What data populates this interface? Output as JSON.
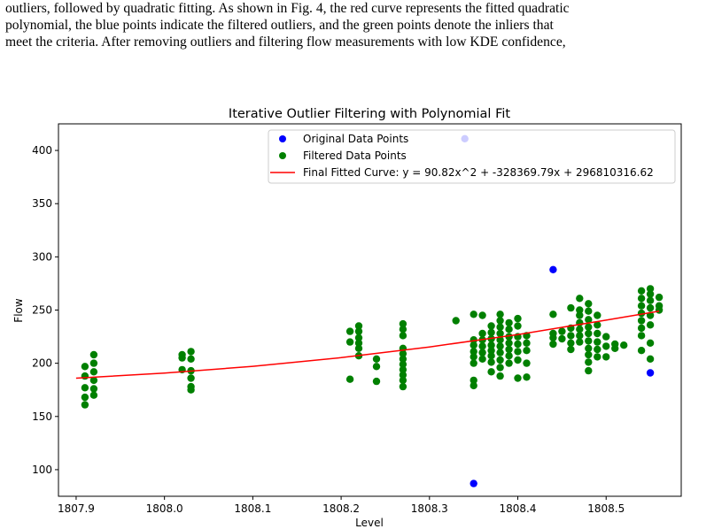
{
  "paragraph": {
    "lines": [
      "outliers, followed by quadratic fitting. As shown in Fig. 4, the red curve represents the fitted quadratic",
      "polynomial, the blue points indicate the filtered outliers, and the green points denote the inliers that",
      "meet the criteria. After removing outliers and filtering flow measurements with low KDE confidence,"
    ]
  },
  "chart_data": {
    "type": "scatter",
    "title": "Iterative Outlier Filtering with Polynomial Fit",
    "xlabel": "Level",
    "ylabel": "Flow",
    "xlim": [
      1807.88,
      1808.585
    ],
    "ylim": [
      75,
      425
    ],
    "xticks": [
      1807.9,
      1808.0,
      1808.1,
      1808.2,
      1808.3,
      1808.4,
      1808.5
    ],
    "xtick_labels": [
      "1807.9",
      "1808.0",
      "1808.1",
      "1808.2",
      "1808.3",
      "1808.4",
      "1808.5"
    ],
    "yticks": [
      100,
      150,
      200,
      250,
      300,
      350,
      400
    ],
    "ytick_labels": [
      "100",
      "150",
      "200",
      "250",
      "300",
      "350",
      "400"
    ],
    "grid": false,
    "legend_position": "top-right",
    "series": [
      {
        "name": "Original Data Points",
        "color": "#0000ff",
        "points": [
          [
            1808.34,
            411
          ],
          [
            1808.44,
            288
          ],
          [
            1808.35,
            87
          ],
          [
            1808.55,
            191
          ]
        ]
      },
      {
        "name": "Filtered Data Points",
        "color": "#008000",
        "points": [
          [
            1807.91,
            161
          ],
          [
            1807.91,
            168
          ],
          [
            1807.91,
            177
          ],
          [
            1807.91,
            188
          ],
          [
            1807.91,
            197
          ],
          [
            1807.92,
            170
          ],
          [
            1807.92,
            176
          ],
          [
            1807.92,
            184
          ],
          [
            1807.92,
            192
          ],
          [
            1807.92,
            200
          ],
          [
            1807.92,
            208
          ],
          [
            1808.02,
            194
          ],
          [
            1808.02,
            205
          ],
          [
            1808.02,
            208
          ],
          [
            1808.03,
            175
          ],
          [
            1808.03,
            178
          ],
          [
            1808.03,
            186
          ],
          [
            1808.03,
            193
          ],
          [
            1808.03,
            204
          ],
          [
            1808.03,
            211
          ],
          [
            1808.21,
            185
          ],
          [
            1808.21,
            220
          ],
          [
            1808.21,
            230
          ],
          [
            1808.22,
            207
          ],
          [
            1808.22,
            214
          ],
          [
            1808.22,
            219
          ],
          [
            1808.22,
            224
          ],
          [
            1808.22,
            230
          ],
          [
            1808.22,
            235
          ],
          [
            1808.24,
            183
          ],
          [
            1808.24,
            197
          ],
          [
            1808.24,
            204
          ],
          [
            1808.27,
            178
          ],
          [
            1808.27,
            184
          ],
          [
            1808.27,
            189
          ],
          [
            1808.27,
            194
          ],
          [
            1808.27,
            199
          ],
          [
            1808.27,
            204
          ],
          [
            1808.27,
            209
          ],
          [
            1808.27,
            214
          ],
          [
            1808.27,
            226
          ],
          [
            1808.27,
            232
          ],
          [
            1808.27,
            237
          ],
          [
            1808.33,
            240
          ],
          [
            1808.35,
            179
          ],
          [
            1808.35,
            184
          ],
          [
            1808.35,
            200
          ],
          [
            1808.35,
            206
          ],
          [
            1808.35,
            211
          ],
          [
            1808.35,
            217
          ],
          [
            1808.35,
            222
          ],
          [
            1808.35,
            246
          ],
          [
            1808.36,
            204
          ],
          [
            1808.36,
            210
          ],
          [
            1808.36,
            216
          ],
          [
            1808.36,
            222
          ],
          [
            1808.36,
            228
          ],
          [
            1808.36,
            245
          ],
          [
            1808.37,
            192
          ],
          [
            1808.37,
            201
          ],
          [
            1808.37,
            207
          ],
          [
            1808.37,
            212
          ],
          [
            1808.37,
            217
          ],
          [
            1808.37,
            223
          ],
          [
            1808.37,
            229
          ],
          [
            1808.37,
            235
          ],
          [
            1808.38,
            188
          ],
          [
            1808.38,
            196
          ],
          [
            1808.38,
            203
          ],
          [
            1808.38,
            210
          ],
          [
            1808.38,
            216
          ],
          [
            1808.38,
            222
          ],
          [
            1808.38,
            228
          ],
          [
            1808.38,
            234
          ],
          [
            1808.38,
            240
          ],
          [
            1808.38,
            246
          ],
          [
            1808.39,
            200
          ],
          [
            1808.39,
            207
          ],
          [
            1808.39,
            213
          ],
          [
            1808.39,
            219
          ],
          [
            1808.39,
            225
          ],
          [
            1808.39,
            232
          ],
          [
            1808.39,
            238
          ],
          [
            1808.4,
            186
          ],
          [
            1808.4,
            203
          ],
          [
            1808.4,
            211
          ],
          [
            1808.4,
            218
          ],
          [
            1808.4,
            225
          ],
          [
            1808.4,
            235
          ],
          [
            1808.4,
            242
          ],
          [
            1808.41,
            187
          ],
          [
            1808.41,
            200
          ],
          [
            1808.41,
            212
          ],
          [
            1808.41,
            219
          ],
          [
            1808.41,
            226
          ],
          [
            1808.44,
            218
          ],
          [
            1808.44,
            224
          ],
          [
            1808.44,
            228
          ],
          [
            1808.44,
            246
          ],
          [
            1808.45,
            223
          ],
          [
            1808.45,
            230
          ],
          [
            1808.46,
            213
          ],
          [
            1808.46,
            219
          ],
          [
            1808.46,
            226
          ],
          [
            1808.46,
            233
          ],
          [
            1808.46,
            252
          ],
          [
            1808.47,
            220
          ],
          [
            1808.47,
            226
          ],
          [
            1808.47,
            232
          ],
          [
            1808.47,
            238
          ],
          [
            1808.47,
            245
          ],
          [
            1808.47,
            250
          ],
          [
            1808.47,
            261
          ],
          [
            1808.48,
            193
          ],
          [
            1808.48,
            201
          ],
          [
            1808.48,
            208
          ],
          [
            1808.48,
            214
          ],
          [
            1808.48,
            221
          ],
          [
            1808.48,
            228
          ],
          [
            1808.48,
            234
          ],
          [
            1808.48,
            241
          ],
          [
            1808.48,
            249
          ],
          [
            1808.48,
            256
          ],
          [
            1808.49,
            206
          ],
          [
            1808.49,
            213
          ],
          [
            1808.49,
            220
          ],
          [
            1808.49,
            228
          ],
          [
            1808.49,
            236
          ],
          [
            1808.49,
            245
          ],
          [
            1808.5,
            206
          ],
          [
            1808.5,
            216
          ],
          [
            1808.5,
            225
          ],
          [
            1808.51,
            214
          ],
          [
            1808.51,
            218
          ],
          [
            1808.52,
            217
          ],
          [
            1808.54,
            212
          ],
          [
            1808.54,
            226
          ],
          [
            1808.54,
            233
          ],
          [
            1808.54,
            240
          ],
          [
            1808.54,
            247
          ],
          [
            1808.54,
            254
          ],
          [
            1808.54,
            261
          ],
          [
            1808.54,
            268
          ],
          [
            1808.55,
            204
          ],
          [
            1808.55,
            219
          ],
          [
            1808.55,
            236
          ],
          [
            1808.55,
            245
          ],
          [
            1808.55,
            252
          ],
          [
            1808.55,
            259
          ],
          [
            1808.55,
            265
          ],
          [
            1808.55,
            270
          ],
          [
            1808.56,
            250
          ],
          [
            1808.56,
            254
          ],
          [
            1808.56,
            262
          ]
        ]
      },
      {
        "name": "Final Fitted Curve: y = 90.82x^2 + -328369.79x + 296810316.62",
        "color": "#ff0000",
        "type": "line",
        "points": [
          [
            1807.9,
            186.0
          ],
          [
            1808.0,
            190.7
          ],
          [
            1808.1,
            197.1
          ],
          [
            1808.2,
            205.3
          ],
          [
            1808.3,
            215.3
          ],
          [
            1808.4,
            227.0
          ],
          [
            1808.5,
            240.5
          ],
          [
            1808.56,
            249.0
          ]
        ]
      }
    ]
  }
}
